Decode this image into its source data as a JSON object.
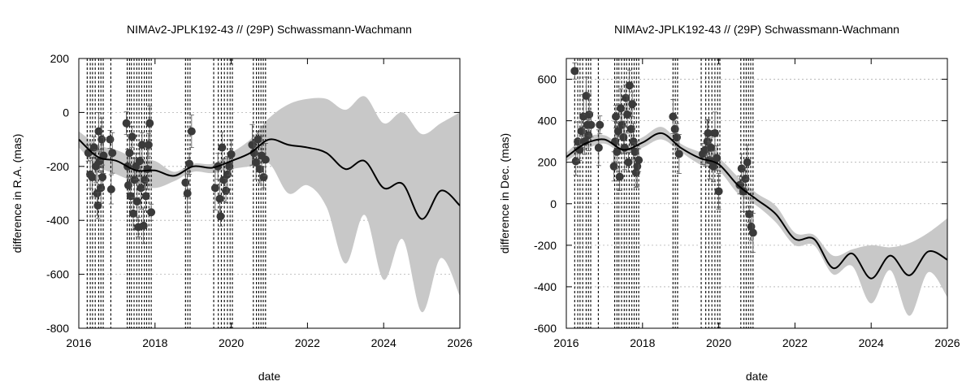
{
  "chart_data": [
    {
      "type": "line",
      "title": "NIMAv2-JPLK192-43 // (29P) Schwassmann-Wachmann",
      "xlabel": "date",
      "ylabel": "difference in R.A. (mas)",
      "xlim": [
        2016,
        2026
      ],
      "ylim": [
        -800,
        200
      ],
      "x_ticks": [
        "2016",
        "2018",
        "2020",
        "2022",
        "2024",
        "2026"
      ],
      "y_ticks": [
        "200",
        "0",
        "-200",
        "-400",
        "-600",
        "-800"
      ],
      "y_grid": true,
      "x": [
        2016.0,
        2016.5,
        2017.0,
        2017.5,
        2018.0,
        2018.5,
        2019.0,
        2019.5,
        2020.0,
        2020.5,
        2021.0,
        2021.5,
        2022.0,
        2022.5,
        2023.0,
        2023.5,
        2024.0,
        2024.5,
        2025.0,
        2025.5,
        2026.0
      ],
      "y": [
        -100,
        -165,
        -180,
        -215,
        -215,
        -235,
        -200,
        -205,
        -180,
        -150,
        -100,
        -120,
        -130,
        -150,
        -210,
        -180,
        -280,
        -265,
        -395,
        -290,
        -345
      ],
      "band_upper": [
        -70,
        -120,
        -140,
        -170,
        -180,
        -220,
        -190,
        -190,
        -150,
        -100,
        -20,
        30,
        50,
        50,
        10,
        60,
        -40,
        0,
        -80,
        -40,
        0
      ],
      "band_lower": [
        -130,
        -200,
        -230,
        -260,
        -280,
        -255,
        -220,
        -225,
        -210,
        -200,
        -190,
        -300,
        -270,
        -350,
        -560,
        -380,
        -620,
        -470,
        -740,
        -540,
        -680
      ],
      "observation_dates": [
        2016.22,
        2016.3,
        2016.36,
        2016.43,
        2016.52,
        2016.58,
        2016.64,
        2016.84,
        2017.27,
        2017.33,
        2017.38,
        2017.45,
        2017.52,
        2017.58,
        2017.65,
        2017.72,
        2017.78,
        2017.84,
        2017.9,
        2018.8,
        2018.86,
        2018.92,
        2019.54,
        2019.66,
        2019.74,
        2019.82,
        2019.9,
        2019.97,
        2020.03,
        2020.58,
        2020.66,
        2020.72,
        2020.78,
        2020.84,
        2020.9
      ],
      "points": [
        [
          2016.25,
          -150
        ],
        [
          2016.3,
          -230
        ],
        [
          2016.35,
          -240
        ],
        [
          2016.4,
          -130
        ],
        [
          2016.45,
          -200
        ],
        [
          2016.48,
          -300
        ],
        [
          2016.5,
          -345
        ],
        [
          2016.52,
          -70
        ],
        [
          2016.55,
          -180
        ],
        [
          2016.58,
          -280
        ],
        [
          2016.6,
          -100
        ],
        [
          2016.62,
          -240
        ],
        [
          2016.65,
          -160
        ],
        [
          2016.82,
          -100
        ],
        [
          2016.85,
          -285
        ],
        [
          2016.88,
          -150
        ],
        [
          2017.25,
          -40
        ],
        [
          2017.28,
          -200
        ],
        [
          2017.3,
          -270
        ],
        [
          2017.33,
          -150
        ],
        [
          2017.36,
          -310
        ],
        [
          2017.4,
          -90
        ],
        [
          2017.43,
          -375
        ],
        [
          2017.46,
          -250
        ],
        [
          2017.5,
          -200
        ],
        [
          2017.53,
          -330
        ],
        [
          2017.56,
          -425
        ],
        [
          2017.6,
          -180
        ],
        [
          2017.63,
          -280
        ],
        [
          2017.66,
          -120
        ],
        [
          2017.7,
          -420
        ],
        [
          2017.73,
          -250
        ],
        [
          2017.76,
          -310
        ],
        [
          2017.8,
          -210
        ],
        [
          2017.83,
          -120
        ],
        [
          2017.86,
          -40
        ],
        [
          2017.9,
          -370
        ],
        [
          2018.8,
          -260
        ],
        [
          2018.85,
          -300
        ],
        [
          2018.9,
          -190
        ],
        [
          2018.96,
          -70
        ],
        [
          2019.58,
          -280
        ],
        [
          2019.65,
          -200
        ],
        [
          2019.7,
          -320
        ],
        [
          2019.72,
          -385
        ],
        [
          2019.76,
          -130
        ],
        [
          2019.8,
          -250
        ],
        [
          2019.86,
          -290
        ],
        [
          2019.9,
          -230
        ],
        [
          2019.95,
          -200
        ],
        [
          2020.0,
          -155
        ],
        [
          2020.55,
          -120
        ],
        [
          2020.6,
          -150
        ],
        [
          2020.65,
          -185
        ],
        [
          2020.7,
          -100
        ],
        [
          2020.75,
          -210
        ],
        [
          2020.8,
          -160
        ],
        [
          2020.85,
          -240
        ],
        [
          2020.9,
          -175
        ]
      ]
    },
    {
      "type": "line",
      "title": "NIMAv2-JPLK192-43 // (29P) Schwassmann-Wachmann",
      "xlabel": "date",
      "ylabel": "difference in Dec. (mas)",
      "xlim": [
        2016,
        2026
      ],
      "ylim": [
        -600,
        700
      ],
      "x_ticks": [
        "2016",
        "2018",
        "2020",
        "2022",
        "2024",
        "2026"
      ],
      "y_ticks": [
        "600",
        "400",
        "200",
        "0",
        "-200",
        "-400",
        "-600"
      ],
      "y_grid": true,
      "x": [
        2016.0,
        2016.5,
        2017.0,
        2017.5,
        2018.0,
        2018.5,
        2019.0,
        2019.5,
        2020.0,
        2020.5,
        2021.0,
        2021.5,
        2022.0,
        2022.5,
        2023.0,
        2023.5,
        2024.0,
        2024.5,
        2025.0,
        2025.5,
        2026.0
      ],
      "y": [
        225,
        290,
        310,
        260,
        295,
        340,
        270,
        220,
        190,
        90,
        20,
        -50,
        -170,
        -170,
        -310,
        -240,
        -360,
        -250,
        -345,
        -230,
        -270
      ],
      "band_upper": [
        245,
        320,
        330,
        280,
        320,
        370,
        290,
        250,
        220,
        130,
        50,
        -10,
        -140,
        -150,
        -250,
        -220,
        -200,
        -210,
        -190,
        -140,
        -70
      ],
      "band_lower": [
        205,
        260,
        290,
        240,
        270,
        310,
        250,
        190,
        160,
        50,
        -10,
        -90,
        -200,
        -200,
        -340,
        -300,
        -480,
        -320,
        -540,
        -330,
        -450
      ],
      "observation_dates": [
        2016.22,
        2016.3,
        2016.36,
        2016.43,
        2016.52,
        2016.58,
        2016.64,
        2016.84,
        2017.27,
        2017.33,
        2017.38,
        2017.45,
        2017.52,
        2017.58,
        2017.65,
        2017.72,
        2017.78,
        2017.84,
        2017.9,
        2018.8,
        2018.86,
        2018.92,
        2019.54,
        2019.66,
        2019.74,
        2019.82,
        2019.9,
        2019.97,
        2020.03,
        2020.58,
        2020.66,
        2020.72,
        2020.78,
        2020.84,
        2020.9
      ],
      "points": [
        [
          2016.22,
          640
        ],
        [
          2016.25,
          205
        ],
        [
          2016.3,
          300
        ],
        [
          2016.35,
          260
        ],
        [
          2016.4,
          350
        ],
        [
          2016.45,
          420
        ],
        [
          2016.48,
          300
        ],
        [
          2016.52,
          520
        ],
        [
          2016.55,
          380
        ],
        [
          2016.58,
          330
        ],
        [
          2016.6,
          430
        ],
        [
          2016.65,
          380
        ],
        [
          2016.85,
          270
        ],
        [
          2016.88,
          380
        ],
        [
          2017.25,
          180
        ],
        [
          2017.28,
          300
        ],
        [
          2017.3,
          420
        ],
        [
          2017.33,
          250
        ],
        [
          2017.36,
          350
        ],
        [
          2017.4,
          130
        ],
        [
          2017.43,
          460
        ],
        [
          2017.46,
          380
        ],
        [
          2017.5,
          320
        ],
        [
          2017.53,
          270
        ],
        [
          2017.56,
          510
        ],
        [
          2017.6,
          430
        ],
        [
          2017.63,
          200
        ],
        [
          2017.66,
          570
        ],
        [
          2017.7,
          360
        ],
        [
          2017.73,
          480
        ],
        [
          2017.76,
          300
        ],
        [
          2017.8,
          250
        ],
        [
          2017.83,
          150
        ],
        [
          2017.86,
          180
        ],
        [
          2017.9,
          210
        ],
        [
          2018.8,
          420
        ],
        [
          2018.85,
          360
        ],
        [
          2018.9,
          320
        ],
        [
          2018.96,
          240
        ],
        [
          2019.58,
          240
        ],
        [
          2019.65,
          260
        ],
        [
          2019.7,
          300
        ],
        [
          2019.72,
          340
        ],
        [
          2019.76,
          210
        ],
        [
          2019.8,
          270
        ],
        [
          2019.86,
          180
        ],
        [
          2019.9,
          340
        ],
        [
          2019.95,
          220
        ],
        [
          2020.0,
          60
        ],
        [
          2020.55,
          90
        ],
        [
          2020.6,
          170
        ],
        [
          2020.65,
          60
        ],
        [
          2020.7,
          120
        ],
        [
          2020.75,
          200
        ],
        [
          2020.8,
          -50
        ],
        [
          2020.85,
          -110
        ],
        [
          2020.9,
          -140
        ]
      ]
    }
  ]
}
